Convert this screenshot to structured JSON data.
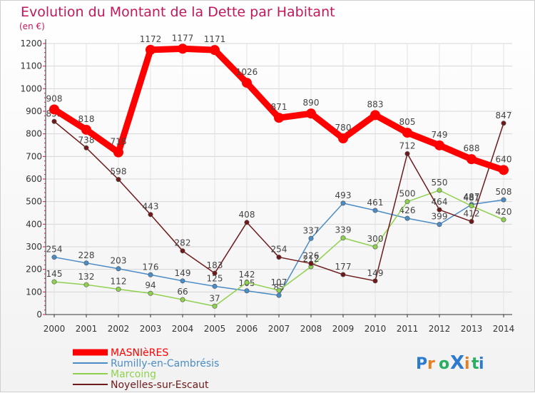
{
  "chart_data": {
    "type": "line",
    "title": "Evolution du Montant de la Dette par Habitant",
    "unit_label": "(en €)",
    "xlabel": "",
    "ylabel": "",
    "ylim": [
      0,
      1200
    ],
    "yticks": [
      0,
      100,
      200,
      300,
      400,
      500,
      600,
      700,
      800,
      900,
      1000,
      1100,
      1200
    ],
    "x": [
      "2000",
      "2001",
      "2002",
      "2003",
      "2004",
      "2005",
      "2006",
      "2007",
      "2008",
      "2009",
      "2010",
      "2011",
      "2012",
      "2013",
      "2014"
    ],
    "legend_position": "bottom-left",
    "series": [
      {
        "name": "MASNIèRES",
        "color": "#ff0000",
        "values": [
          908,
          818,
          718,
          1172,
          1177,
          1171,
          1026,
          871,
          890,
          780,
          883,
          805,
          749,
          688,
          640
        ]
      },
      {
        "name": "Rumilly-en-Cambrésis",
        "color": "#4a8cc6",
        "values": [
          254,
          228,
          203,
          176,
          149,
          125,
          105,
          85,
          337,
          493,
          461,
          426,
          399,
          487,
          508
        ]
      },
      {
        "name": "Marcoing",
        "color": "#8fd14f",
        "values": [
          145,
          132,
          112,
          94,
          66,
          37,
          142,
          107,
          212,
          339,
          300,
          500,
          550,
          481,
          420
        ]
      },
      {
        "name": "Noyelles-sur-Escaut",
        "color": "#6e1a1a",
        "values": [
          855,
          738,
          598,
          443,
          282,
          183,
          408,
          254,
          226,
          177,
          149,
          712,
          464,
          412,
          847
        ]
      }
    ]
  },
  "watermark": {
    "text": "ProXiti"
  }
}
